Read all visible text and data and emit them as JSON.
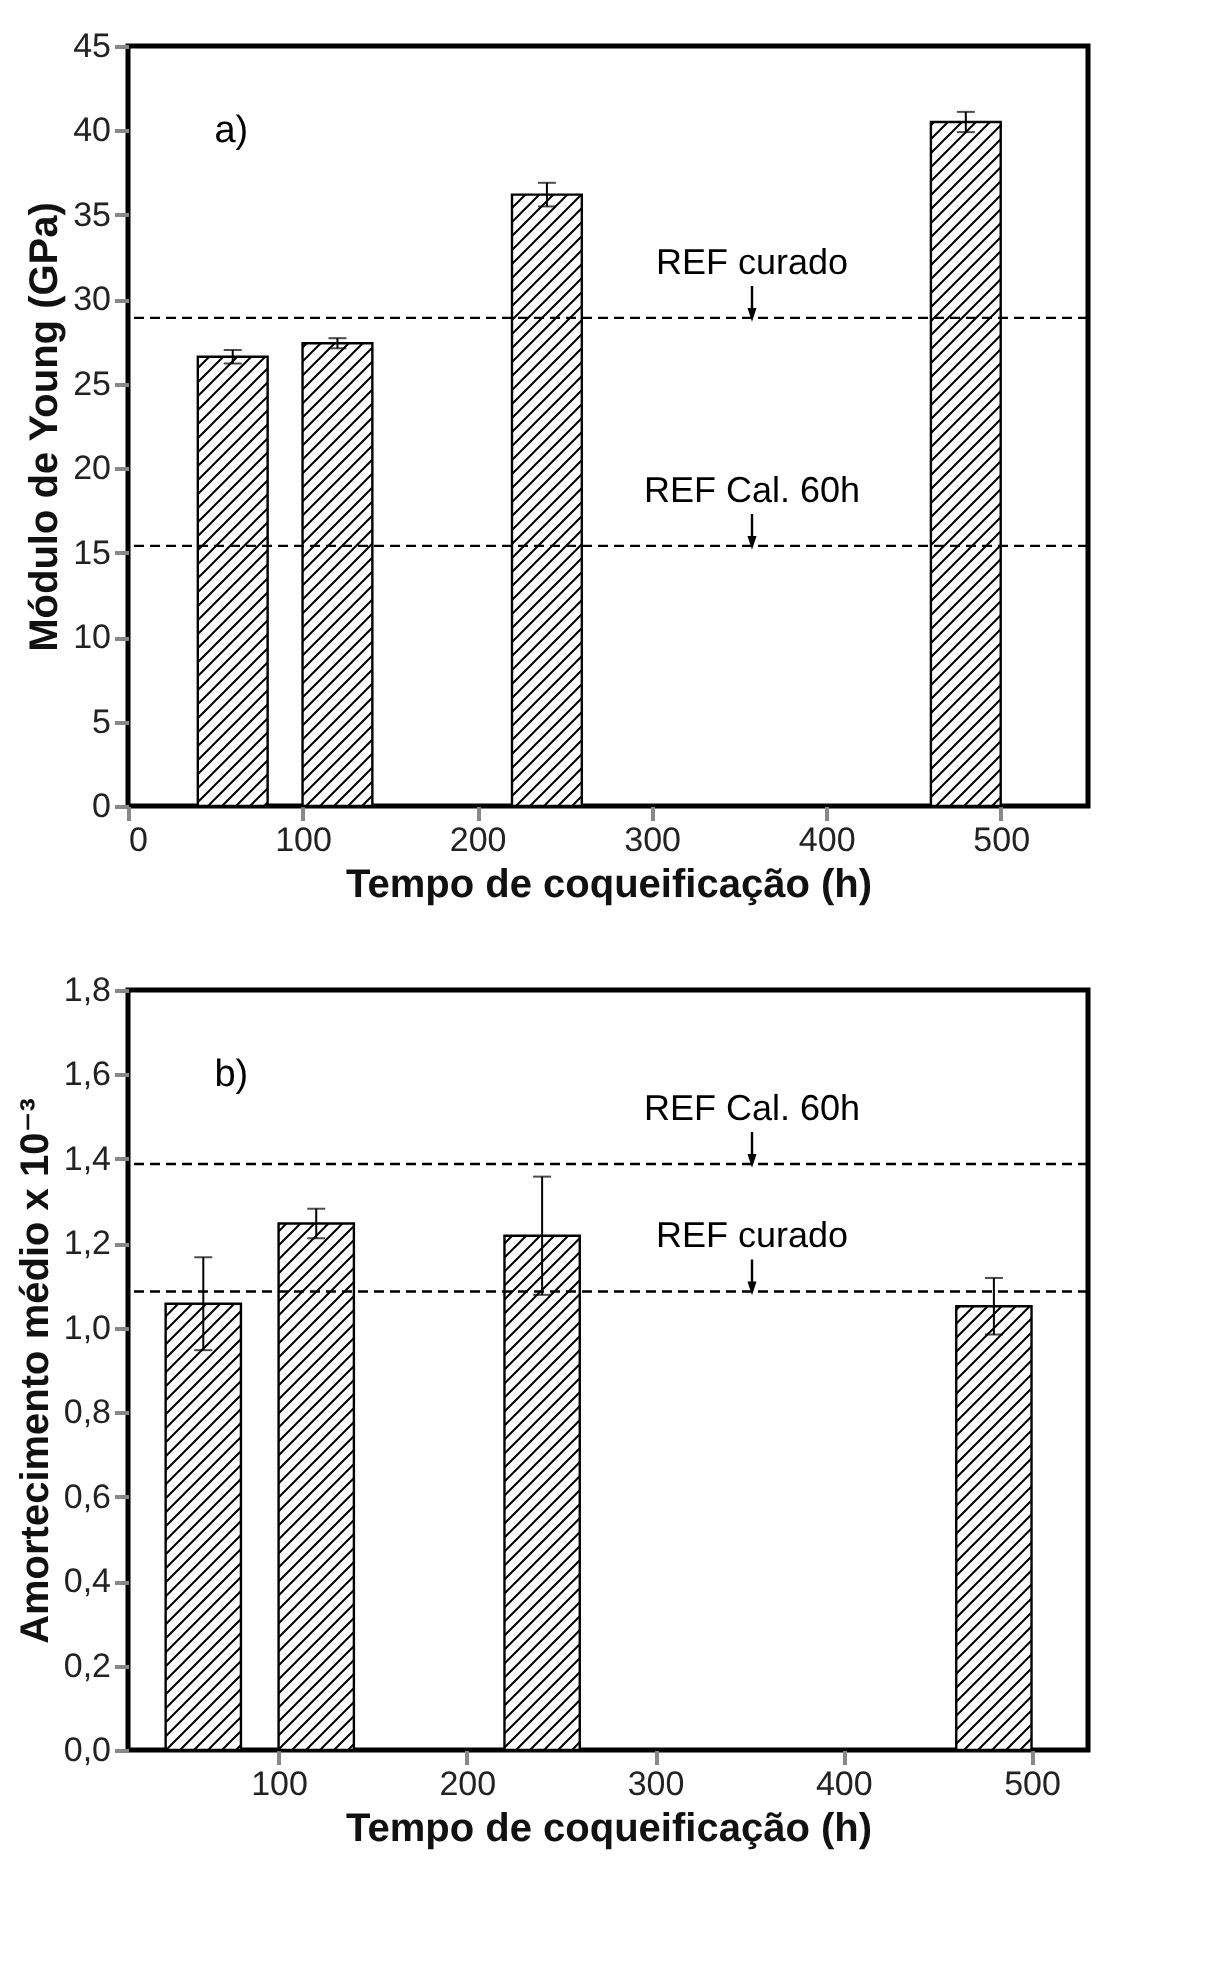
{
  "chart_data": [
    {
      "type": "bar",
      "xlabel": "Tempo de coqueificação (h)",
      "ylabel": "Módulo de Young (GPa)",
      "color": "#000000",
      "x": [
        60,
        120,
        240,
        480
      ],
      "values": [
        26.6,
        27.4,
        36.2,
        40.5
      ],
      "errors": [
        0.4,
        0.3,
        0.7,
        0.6
      ],
      "xlim": [
        0,
        550
      ],
      "xticks": [
        0,
        100,
        200,
        300,
        400,
        500
      ],
      "ylim": [
        0,
        45
      ],
      "yticks": [
        0,
        5,
        10,
        15,
        20,
        25,
        30,
        35,
        40,
        45
      ],
      "ref_lines": [
        {
          "axis": "y",
          "value": 28.9,
          "label": "REF curado",
          "line_style": "dashed"
        },
        {
          "axis": "y",
          "value": 15.4,
          "label": "REF Cal. 60h",
          "line_style": "dashed"
        }
      ],
      "annotations": [
        "a)"
      ]
    },
    {
      "type": "bar",
      "xlabel": "Tempo de coqueificação (h)",
      "ylabel": "Amortecimento médio x 10⁻³",
      "color": "#000000",
      "x": [
        60,
        120,
        240,
        480
      ],
      "values": [
        1.057,
        1.247,
        1.218,
        1.051
      ],
      "errors": [
        0.11,
        0.035,
        0.14,
        0.067
      ],
      "xlim": [
        20,
        530
      ],
      "xticks": [
        100,
        200,
        300,
        400,
        500
      ],
      "ylim": [
        0,
        1.8
      ],
      "yticks": [
        {
          "value": 0,
          "label": "0,0"
        },
        {
          "value": 0.2,
          "label": "0,2"
        },
        {
          "value": 0.4,
          "label": "0,4"
        },
        {
          "value": 0.6,
          "label": "0,6"
        },
        {
          "value": 0.8,
          "label": "0,8"
        },
        {
          "value": 1.0,
          "label": "1,0"
        },
        {
          "value": 1.2,
          "label": "1,2"
        },
        {
          "value": 1.4,
          "label": "1,4"
        },
        {
          "value": 1.6,
          "label": "1,6"
        },
        {
          "value": 1.8,
          "label": "1,8"
        }
      ],
      "ref_lines": [
        {
          "axis": "y",
          "value": 1.388,
          "label": "REF Cal. 60h",
          "line_style": "dashed"
        },
        {
          "axis": "y",
          "value": 1.086,
          "label": "REF curado",
          "line_style": "dashed"
        }
      ],
      "annotations": [
        "b)"
      ]
    }
  ]
}
